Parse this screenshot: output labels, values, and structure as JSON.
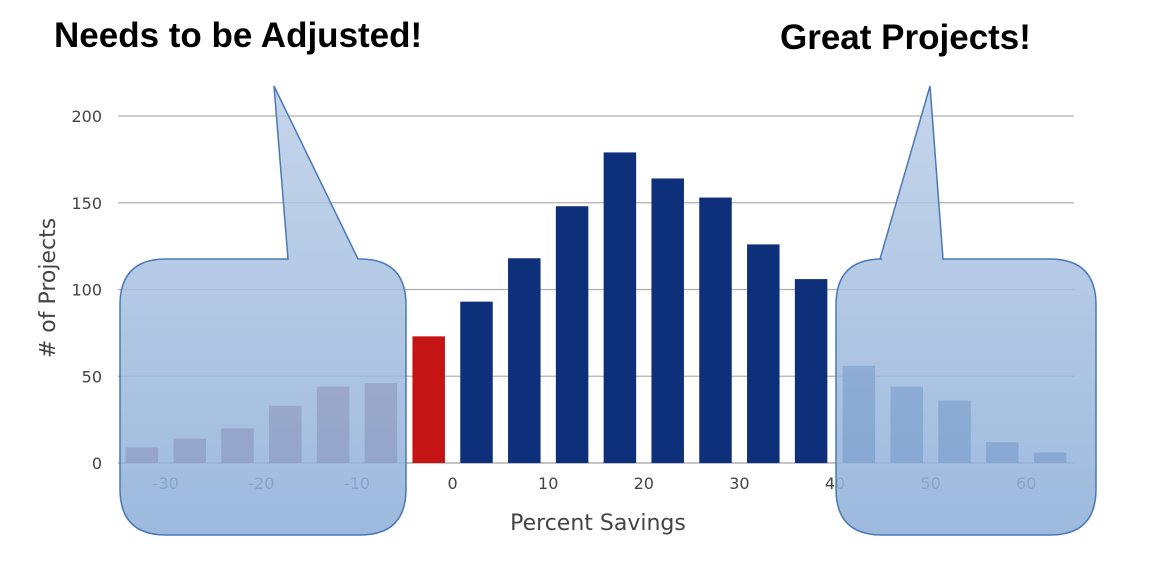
{
  "annotations": {
    "left": "Needs to be Adjusted!",
    "right": "Great Projects!"
  },
  "colors": {
    "negative": "#8a3f5a",
    "near_zero": "#c41414",
    "positive": "#0e2f7a",
    "high": "#2a56a0",
    "grid": "#b0b0b0",
    "callout_fill": "#8fb0d8",
    "callout_stroke": "#4a78b8"
  },
  "chart_data": {
    "type": "bar",
    "xlabel": "Percent Savings",
    "ylabel": "# of Projects",
    "xlim": [
      -35,
      65
    ],
    "ylim": [
      0,
      200
    ],
    "x_ticks": [
      -30,
      -20,
      -10,
      0,
      10,
      20,
      30,
      40,
      50,
      60
    ],
    "y_ticks": [
      0,
      50,
      100,
      150,
      200
    ],
    "grid": true,
    "bins": [
      {
        "center": -32.5,
        "value": 9,
        "group": "negative"
      },
      {
        "center": -27.5,
        "value": 14,
        "group": "negative"
      },
      {
        "center": -22.5,
        "value": 20,
        "group": "negative"
      },
      {
        "center": -17.5,
        "value": 33,
        "group": "negative"
      },
      {
        "center": -12.5,
        "value": 44,
        "group": "negative"
      },
      {
        "center": -7.5,
        "value": 46,
        "group": "negative"
      },
      {
        "center": -2.5,
        "value": 73,
        "group": "near_zero"
      },
      {
        "center": 2.5,
        "value": 93,
        "group": "positive"
      },
      {
        "center": 7.5,
        "value": 118,
        "group": "positive"
      },
      {
        "center": 12.5,
        "value": 148,
        "group": "positive"
      },
      {
        "center": 17.5,
        "value": 179,
        "group": "positive"
      },
      {
        "center": 22.5,
        "value": 164,
        "group": "positive"
      },
      {
        "center": 27.5,
        "value": 153,
        "group": "positive"
      },
      {
        "center": 32.5,
        "value": 126,
        "group": "positive"
      },
      {
        "center": 37.5,
        "value": 106,
        "group": "positive"
      },
      {
        "center": 42.5,
        "value": 56,
        "group": "high"
      },
      {
        "center": 47.5,
        "value": 44,
        "group": "high"
      },
      {
        "center": 52.5,
        "value": 36,
        "group": "high"
      },
      {
        "center": 57.5,
        "value": 12,
        "group": "high"
      },
      {
        "center": 62.5,
        "value": 6,
        "group": "high"
      }
    ]
  }
}
